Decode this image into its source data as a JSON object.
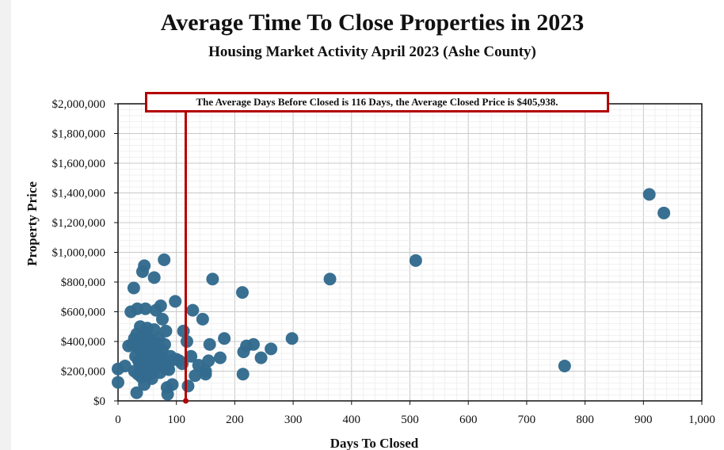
{
  "header": {
    "title": "Average Time To Close Properties in 2023",
    "subtitle": "Housing Market Activity April 2023 (Ashe County)"
  },
  "annotation": {
    "text": "The Average Days Before Closed is 116 Days, the Average Closed Price is $405,938.",
    "avg_days": 116,
    "avg_price": 405938,
    "color": "#b30000"
  },
  "chart_data": {
    "type": "scatter",
    "title": "Average Time To Close Properties in 2023",
    "subtitle": "Housing Market Activity April 2023 (Ashe County)",
    "xlabel": "Days To Closed",
    "ylabel": "Property Price",
    "xlim": [
      0,
      1000
    ],
    "ylim": [
      0,
      2000000
    ],
    "x_ticks": [
      "0",
      "100",
      "200",
      "300",
      "400",
      "500",
      "600",
      "700",
      "800",
      "900",
      "1,000"
    ],
    "y_ticks": [
      "$0",
      "$200,000",
      "$400,000",
      "$600,000",
      "$800,000",
      "$1,000,000",
      "$1,200,000",
      "$1,400,000",
      "$1,600,000",
      "$1,800,000",
      "$2,000,000"
    ],
    "grid": true,
    "marker_color": "#336b8e",
    "series": [
      {
        "points": [
          [
            0,
            215000
          ],
          [
            0,
            125000
          ],
          [
            12,
            235000
          ],
          [
            18,
            370000
          ],
          [
            22,
            600000
          ],
          [
            27,
            760000
          ],
          [
            33,
            620000
          ],
          [
            32,
            55000
          ],
          [
            35,
            270000
          ],
          [
            38,
            500000
          ],
          [
            42,
            870000
          ],
          [
            45,
            910000
          ],
          [
            47,
            620000
          ],
          [
            41,
            300000
          ],
          [
            43,
            190000
          ],
          [
            45,
            110000
          ],
          [
            50,
            490000
          ],
          [
            52,
            420000
          ],
          [
            55,
            290000
          ],
          [
            58,
            150000
          ],
          [
            62,
            830000
          ],
          [
            65,
            610000
          ],
          [
            67,
            390000
          ],
          [
            70,
            240000
          ],
          [
            73,
            640000
          ],
          [
            76,
            550000
          ],
          [
            79,
            950000
          ],
          [
            82,
            470000
          ],
          [
            84,
            90000
          ],
          [
            85,
            45000
          ],
          [
            87,
            210000
          ],
          [
            90,
            300000
          ],
          [
            93,
            110000
          ],
          [
            98,
            670000
          ],
          [
            100,
            280000
          ],
          [
            112,
            470000
          ],
          [
            118,
            400000
          ],
          [
            120,
            100000
          ],
          [
            125,
            300000
          ],
          [
            128,
            610000
          ],
          [
            132,
            170000
          ],
          [
            138,
            240000
          ],
          [
            145,
            550000
          ],
          [
            150,
            200000
          ],
          [
            155,
            270000
          ],
          [
            157,
            380000
          ],
          [
            162,
            820000
          ],
          [
            175,
            290000
          ],
          [
            182,
            420000
          ],
          [
            213,
            730000
          ],
          [
            214,
            180000
          ],
          [
            215,
            330000
          ],
          [
            220,
            370000
          ],
          [
            232,
            380000
          ],
          [
            245,
            290000
          ],
          [
            262,
            350000
          ],
          [
            298,
            420000
          ],
          [
            363,
            820000
          ],
          [
            510,
            945000
          ],
          [
            765,
            235000
          ],
          [
            910,
            1390000
          ],
          [
            935,
            1265000
          ],
          [
            25,
            380000
          ],
          [
            28,
            420000
          ],
          [
            30,
            300000
          ],
          [
            32,
            450000
          ],
          [
            36,
            350000
          ],
          [
            38,
            250000
          ],
          [
            40,
            420000
          ],
          [
            42,
            370000
          ],
          [
            44,
            330000
          ],
          [
            46,
            280000
          ],
          [
            48,
            460000
          ],
          [
            50,
            360000
          ],
          [
            52,
            320000
          ],
          [
            54,
            260000
          ],
          [
            56,
            410000
          ],
          [
            58,
            340000
          ],
          [
            60,
            200000
          ],
          [
            62,
            480000
          ],
          [
            64,
            300000
          ],
          [
            66,
            250000
          ],
          [
            68,
            350000
          ],
          [
            70,
            420000
          ],
          [
            72,
            190000
          ],
          [
            74,
            290000
          ],
          [
            76,
            340000
          ],
          [
            78,
            260000
          ],
          [
            80,
            380000
          ],
          [
            82,
            220000
          ],
          [
            28,
            200000
          ],
          [
            34,
            180000
          ],
          [
            40,
            160000
          ],
          [
            48,
            230000
          ],
          [
            55,
            180000
          ],
          [
            63,
            220000
          ],
          [
            72,
            300000
          ],
          [
            86,
            240000
          ],
          [
            95,
            280000
          ],
          [
            105,
            270000
          ],
          [
            110,
            250000
          ],
          [
            150,
            180000
          ]
        ]
      }
    ]
  }
}
